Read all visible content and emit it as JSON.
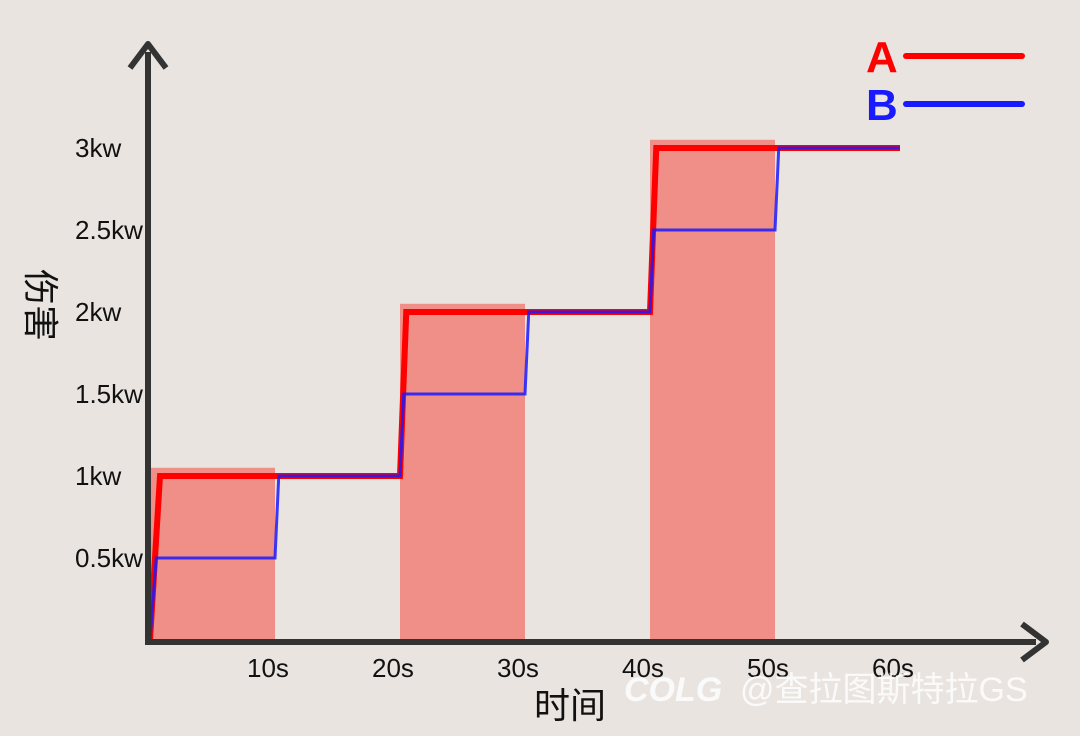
{
  "chart_data": {
    "type": "line",
    "xlabel": "时间",
    "ylabel": "伤害",
    "x_ticks": [
      "10s",
      "20s",
      "30s",
      "40s",
      "50s",
      "60s"
    ],
    "y_ticks": [
      "0.5kw",
      "1kw",
      "1.5kw",
      "2kw",
      "2.5kw",
      "3kw"
    ],
    "xlim": [
      0,
      60
    ],
    "ylim": [
      0,
      3.1
    ],
    "highlight_intervals": [
      [
        0,
        10
      ],
      [
        20,
        30
      ],
      [
        40,
        50
      ]
    ],
    "series": [
      {
        "name": "A",
        "color": "#ff0000",
        "x": [
          0,
          0.8,
          10,
          20,
          20.5,
          40,
          40.5,
          60
        ],
        "y": [
          0,
          1.0,
          1.0,
          1.0,
          2.0,
          2.0,
          3.0,
          3.0
        ]
      },
      {
        "name": "B",
        "color": "#1a1aff",
        "x": [
          0,
          0.5,
          10,
          10.3,
          20,
          20.3,
          30,
          30.3,
          40,
          40.3,
          50,
          50.3,
          60
        ],
        "y": [
          0,
          0.5,
          0.5,
          1.0,
          1.0,
          1.5,
          1.5,
          2.0,
          2.0,
          2.5,
          2.5,
          3.0,
          3.0
        ]
      }
    ],
    "legend_position": "top-right"
  },
  "watermark": {
    "logo": "COLG",
    "text": "@查拉图斯特拉GS"
  },
  "colors": {
    "background": "#e9e4df",
    "highlight": "#f08e88",
    "axis": "#333333"
  }
}
